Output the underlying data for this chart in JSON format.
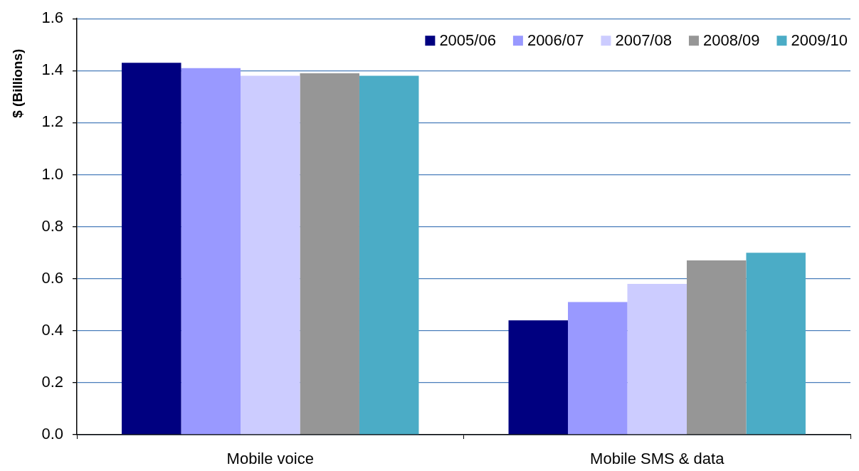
{
  "chart_data": {
    "type": "bar",
    "ylabel": "$ (Billions)",
    "categories": [
      "Mobile voice",
      "Mobile SMS & data"
    ],
    "series": [
      {
        "name": "2005/06",
        "color": "#000080",
        "values": [
          1.43,
          0.44
        ]
      },
      {
        "name": "2006/07",
        "color": "#9999ff",
        "values": [
          1.41,
          0.51
        ]
      },
      {
        "name": "2007/08",
        "color": "#ccccff",
        "values": [
          1.38,
          0.58
        ]
      },
      {
        "name": "2008/09",
        "color": "#969696",
        "values": [
          1.39,
          0.67
        ]
      },
      {
        "name": "2009/10",
        "color": "#4bacc6",
        "values": [
          1.38,
          0.7
        ]
      }
    ],
    "ylim": [
      0,
      1.6
    ],
    "yticks": [
      {
        "value": 0,
        "label": "0.0"
      },
      0.2,
      0.4,
      0.6,
      0.8,
      {
        "value": 1,
        "label": "1.0"
      },
      1.2,
      1.4,
      1.6
    ],
    "grid": "y",
    "legend": "top right"
  }
}
